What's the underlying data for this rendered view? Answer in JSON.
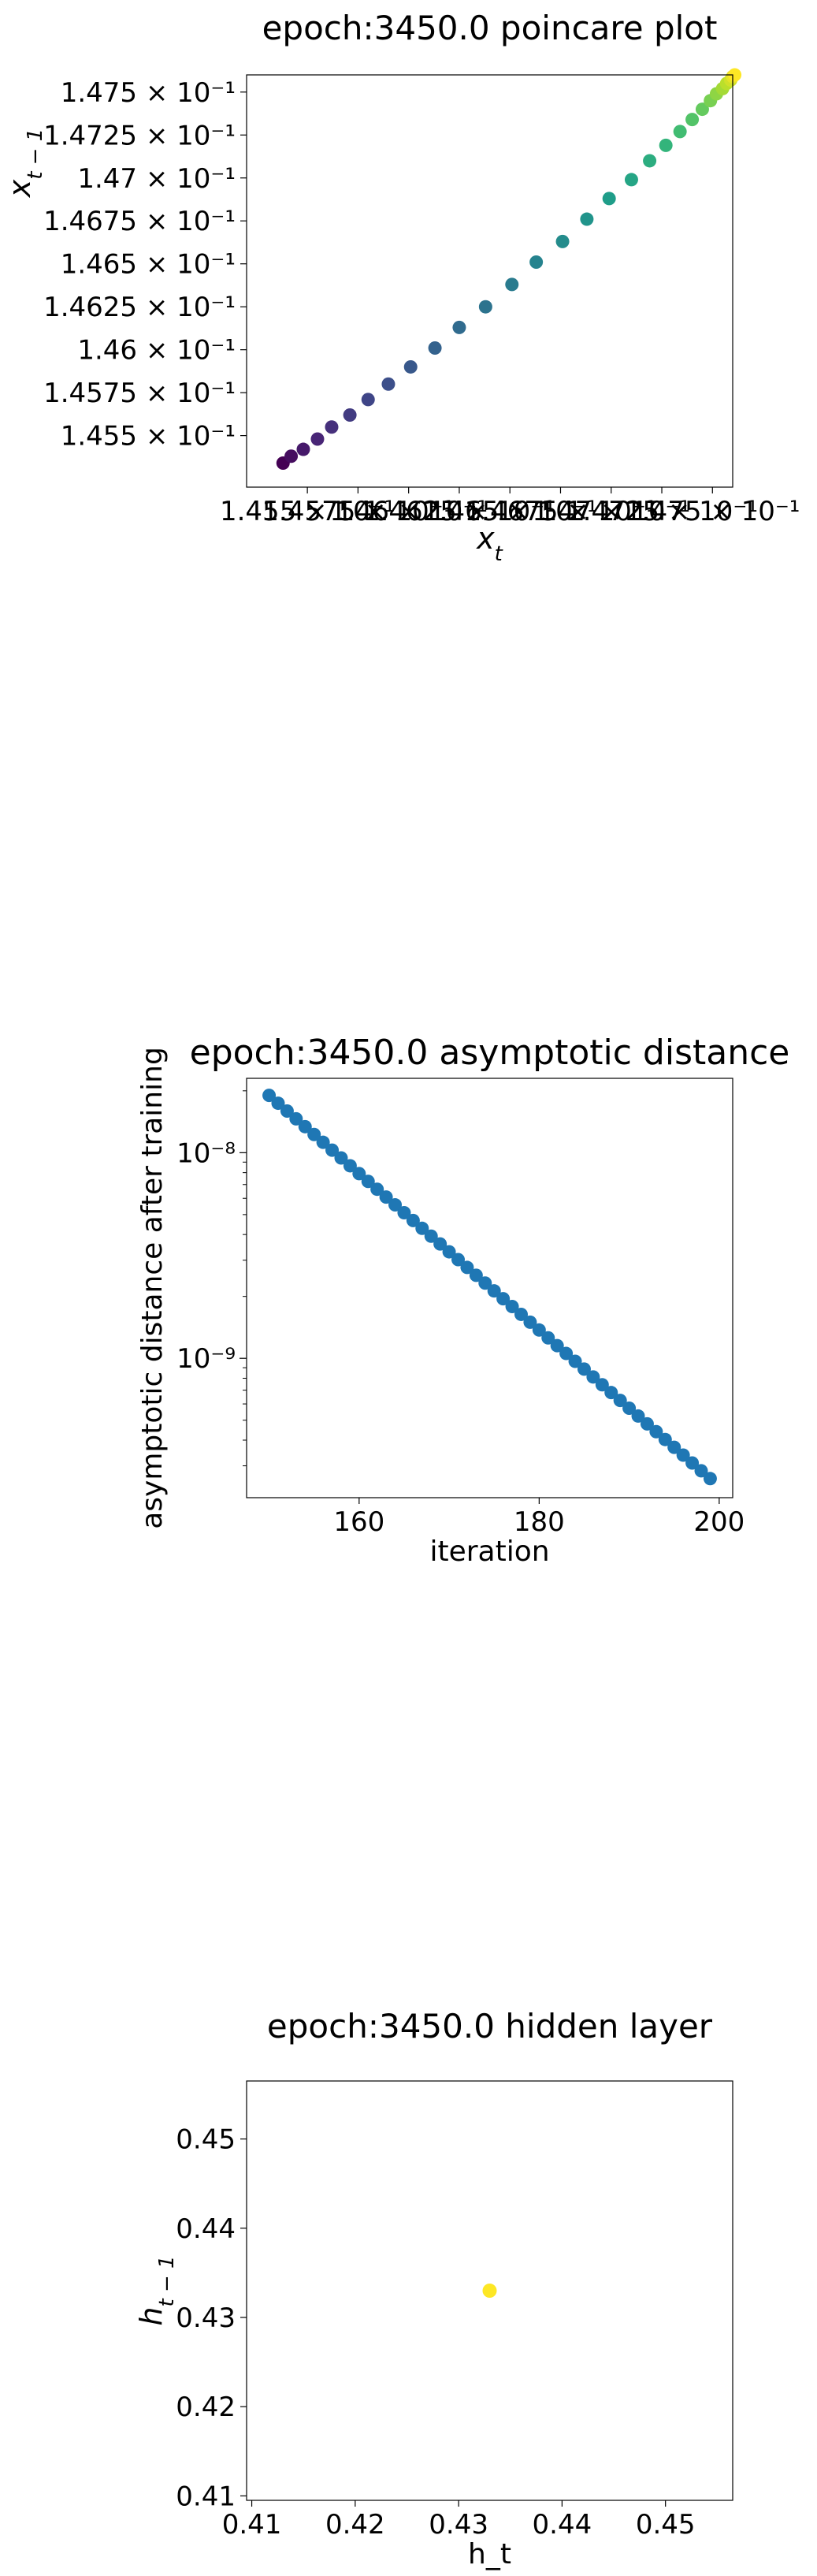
{
  "chart_data": [
    {
      "type": "scatter",
      "title": "epoch:3450.0 poincare plot",
      "xlabel": "x_t",
      "ylabel": "x_{t-1}",
      "colormap": "viridis",
      "xlim": [
        0.1452,
        0.1476
      ],
      "ylim": [
        0.1452,
        0.1476
      ],
      "xticks": [
        0.1455,
        0.14575,
        0.146,
        0.14625,
        0.1465,
        0.14675,
        0.147,
        0.14725,
        0.1475
      ],
      "xtick_labels": [
        "1.455 × 10⁻¹",
        "1.4575 × 10⁻¹",
        "1.46 × 10⁻¹",
        "1.4625 × 10⁻¹",
        "1.465 × 10⁻¹",
        "1.4675 × 10⁻¹",
        "1.47 × 10⁻¹",
        "1.4725 × 10⁻¹",
        "1.475 × 10⁻¹"
      ],
      "yticks": [
        0.1455,
        0.14575,
        0.146,
        0.14625,
        0.1465,
        0.14675,
        0.147,
        0.14725,
        0.1475
      ],
      "ytick_labels": [
        "1.455 × 10⁻¹",
        "1.4575 × 10⁻¹",
        "1.46 × 10⁻¹",
        "1.4625 × 10⁻¹",
        "1.465 × 10⁻¹",
        "1.4675 × 10⁻¹",
        "1.47 × 10⁻¹",
        "1.4725 × 10⁻¹",
        "1.475 × 10⁻¹"
      ],
      "x": [
        0.14538,
        0.14542,
        0.14548,
        0.14555,
        0.14562,
        0.14571,
        0.1458,
        0.1459,
        0.14601,
        0.14613,
        0.14625,
        0.14638,
        0.14651,
        0.14663,
        0.14676,
        0.14688,
        0.14699,
        0.1471,
        0.14719,
        0.14727,
        0.14734,
        0.1474,
        0.14745,
        0.14749,
        0.14752,
        0.14755,
        0.14757,
        0.14759,
        0.1476,
        0.14761
      ],
      "y": [
        0.14534,
        0.14538,
        0.14542,
        0.14548,
        0.14555,
        0.14562,
        0.14571,
        0.1458,
        0.1459,
        0.14601,
        0.14613,
        0.14625,
        0.14638,
        0.14651,
        0.14663,
        0.14676,
        0.14688,
        0.14699,
        0.1471,
        0.14719,
        0.14727,
        0.14734,
        0.1474,
        0.14745,
        0.14749,
        0.14752,
        0.14755,
        0.14757,
        0.14759,
        0.1476
      ]
    },
    {
      "type": "scatter",
      "title": "epoch:3450.0 asymptotic distance",
      "xlabel": "iteration",
      "ylabel": "asymptotic distance after training",
      "yscale": "log",
      "color": "#1f77b4",
      "xlim": [
        147.5,
        201.5
      ],
      "ylim": [
        2.1e-10,
        2.3e-08
      ],
      "xticks": [
        160,
        180,
        200
      ],
      "xtick_labels": [
        "160",
        "180",
        "200"
      ],
      "yticks_major": [
        1e-09,
        1e-08
      ],
      "ytick_labels": [
        "10⁻⁹",
        "10⁻⁸"
      ],
      "x": [
        150,
        151,
        152,
        153,
        154,
        155,
        156,
        157,
        158,
        159,
        160,
        161,
        162,
        163,
        164,
        165,
        166,
        167,
        168,
        169,
        170,
        171,
        172,
        173,
        174,
        175,
        176,
        177,
        178,
        179,
        180,
        181,
        182,
        183,
        184,
        185,
        186,
        187,
        188,
        189,
        190,
        191,
        192,
        193,
        194,
        195,
        196,
        197,
        198,
        199
      ],
      "y_start": 1.9e-08,
      "y_end": 2.6e-10
    },
    {
      "type": "scatter",
      "title": "epoch:3450.0 hidden layer",
      "xlabel": "h_t",
      "ylabel": "h_{t-1}",
      "color": "#fde725",
      "xlim": [
        0.4095,
        0.4565
      ],
      "ylim": [
        0.4095,
        0.4565
      ],
      "xticks": [
        0.41,
        0.42,
        0.43,
        0.44,
        0.45
      ],
      "xtick_labels": [
        "0.41",
        "0.42",
        "0.43",
        "0.44",
        "0.45"
      ],
      "yticks": [
        0.41,
        0.42,
        0.43,
        0.44,
        0.45
      ],
      "ytick_labels": [
        "0.41",
        "0.42",
        "0.43",
        "0.44",
        "0.45"
      ],
      "x": [
        0.433
      ],
      "y": [
        0.433
      ]
    }
  ]
}
